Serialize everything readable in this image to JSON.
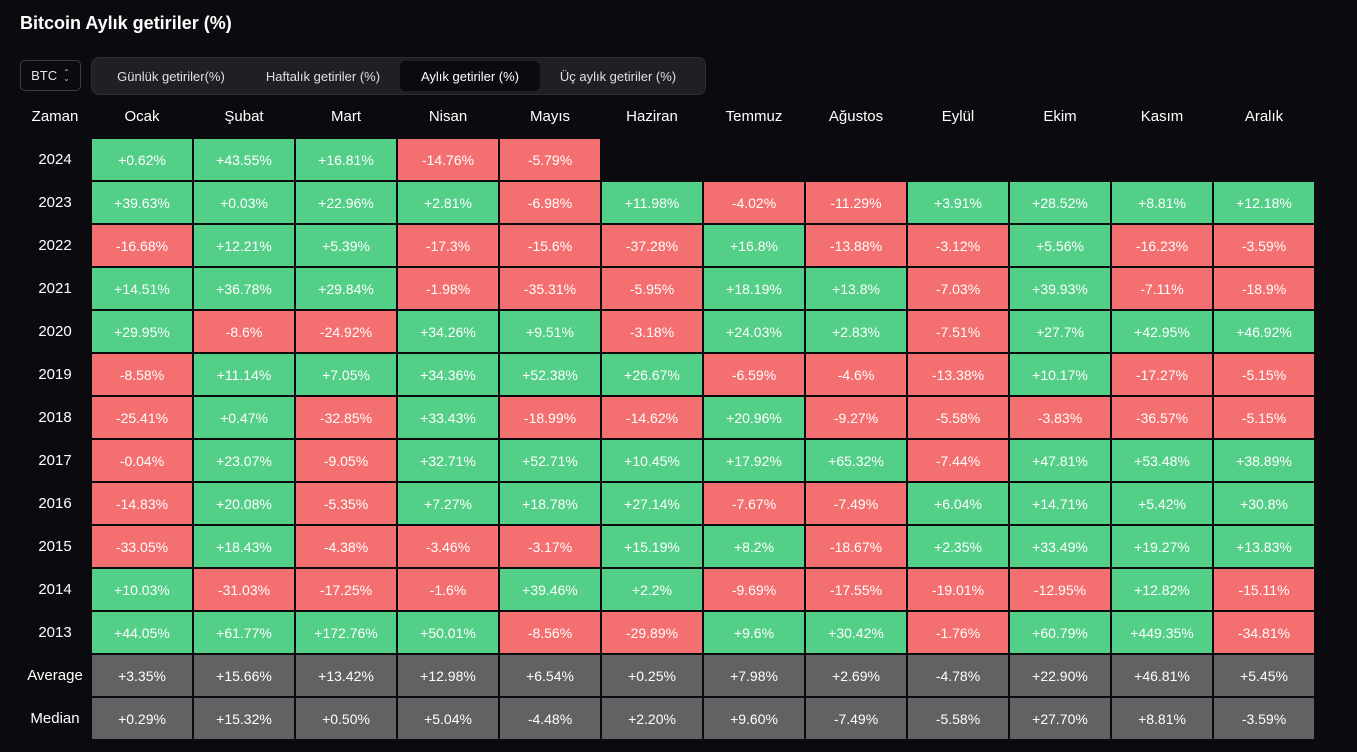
{
  "title": "Bitcoin Aylık getiriler (%)",
  "asset_select": {
    "value": "BTC",
    "icon": "chevron-up-down-icon"
  },
  "tabs": [
    {
      "label": "Günlük getiriler(%)",
      "active": false
    },
    {
      "label": "Haftalık getiriler (%)",
      "active": false
    },
    {
      "label": "Aylık getiriler (%)",
      "active": true
    },
    {
      "label": "Üç aylık getiriler (%)",
      "active": false
    }
  ],
  "colors": {
    "positive": "#53cf87",
    "negative": "#f46f6f",
    "stat": "#626264"
  },
  "table": {
    "corner_label": "Zaman",
    "months": [
      "Ocak",
      "Şubat",
      "Mart",
      "Nisan",
      "Mayıs",
      "Haziran",
      "Temmuz",
      "Ağustos",
      "Eylül",
      "Ekim",
      "Kasım",
      "Aralık"
    ],
    "rows": [
      {
        "label": "2024",
        "values": [
          "+0.62%",
          "+43.55%",
          "+16.81%",
          "-14.76%",
          "-5.79%",
          "",
          "",
          "",
          "",
          "",
          "",
          ""
        ]
      },
      {
        "label": "2023",
        "values": [
          "+39.63%",
          "+0.03%",
          "+22.96%",
          "+2.81%",
          "-6.98%",
          "+11.98%",
          "-4.02%",
          "-11.29%",
          "+3.91%",
          "+28.52%",
          "+8.81%",
          "+12.18%"
        ]
      },
      {
        "label": "2022",
        "values": [
          "-16.68%",
          "+12.21%",
          "+5.39%",
          "-17.3%",
          "-15.6%",
          "-37.28%",
          "+16.8%",
          "-13.88%",
          "-3.12%",
          "+5.56%",
          "-16.23%",
          "-3.59%"
        ]
      },
      {
        "label": "2021",
        "values": [
          "+14.51%",
          "+36.78%",
          "+29.84%",
          "-1.98%",
          "-35.31%",
          "-5.95%",
          "+18.19%",
          "+13.8%",
          "-7.03%",
          "+39.93%",
          "-7.11%",
          "-18.9%"
        ]
      },
      {
        "label": "2020",
        "values": [
          "+29.95%",
          "-8.6%",
          "-24.92%",
          "+34.26%",
          "+9.51%",
          "-3.18%",
          "+24.03%",
          "+2.83%",
          "-7.51%",
          "+27.7%",
          "+42.95%",
          "+46.92%"
        ]
      },
      {
        "label": "2019",
        "values": [
          "-8.58%",
          "+11.14%",
          "+7.05%",
          "+34.36%",
          "+52.38%",
          "+26.67%",
          "-6.59%",
          "-4.6%",
          "-13.38%",
          "+10.17%",
          "-17.27%",
          "-5.15%"
        ]
      },
      {
        "label": "2018",
        "values": [
          "-25.41%",
          "+0.47%",
          "-32.85%",
          "+33.43%",
          "-18.99%",
          "-14.62%",
          "+20.96%",
          "-9.27%",
          "-5.58%",
          "-3.83%",
          "-36.57%",
          "-5.15%"
        ]
      },
      {
        "label": "2017",
        "values": [
          "-0.04%",
          "+23.07%",
          "-9.05%",
          "+32.71%",
          "+52.71%",
          "+10.45%",
          "+17.92%",
          "+65.32%",
          "-7.44%",
          "+47.81%",
          "+53.48%",
          "+38.89%"
        ]
      },
      {
        "label": "2016",
        "values": [
          "-14.83%",
          "+20.08%",
          "-5.35%",
          "+7.27%",
          "+18.78%",
          "+27.14%",
          "-7.67%",
          "-7.49%",
          "+6.04%",
          "+14.71%",
          "+5.42%",
          "+30.8%"
        ]
      },
      {
        "label": "2015",
        "values": [
          "-33.05%",
          "+18.43%",
          "-4.38%",
          "-3.46%",
          "-3.17%",
          "+15.19%",
          "+8.2%",
          "-18.67%",
          "+2.35%",
          "+33.49%",
          "+19.27%",
          "+13.83%"
        ]
      },
      {
        "label": "2014",
        "values": [
          "+10.03%",
          "-31.03%",
          "-17.25%",
          "-1.6%",
          "+39.46%",
          "+2.2%",
          "-9.69%",
          "-17.55%",
          "-19.01%",
          "-12.95%",
          "+12.82%",
          "-15.11%"
        ]
      },
      {
        "label": "2013",
        "values": [
          "+44.05%",
          "+61.77%",
          "+172.76%",
          "+50.01%",
          "-8.56%",
          "-29.89%",
          "+9.6%",
          "+30.42%",
          "-1.76%",
          "+60.79%",
          "+449.35%",
          "-34.81%"
        ]
      }
    ],
    "stats": [
      {
        "label": "Average",
        "values": [
          "+3.35%",
          "+15.66%",
          "+13.42%",
          "+12.98%",
          "+6.54%",
          "+0.25%",
          "+7.98%",
          "+2.69%",
          "-4.78%",
          "+22.90%",
          "+46.81%",
          "+5.45%"
        ]
      },
      {
        "label": "Median",
        "values": [
          "+0.29%",
          "+15.32%",
          "+0.50%",
          "+5.04%",
          "-4.48%",
          "+2.20%",
          "+9.60%",
          "-7.49%",
          "-5.58%",
          "+27.70%",
          "+8.81%",
          "-3.59%"
        ]
      }
    ]
  }
}
